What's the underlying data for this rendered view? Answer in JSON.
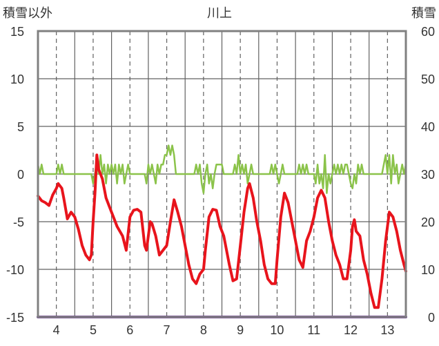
{
  "chart_data": {
    "type": "line",
    "title": "川上",
    "ylabel_left": "積雪以外",
    "ylabel_right": "積雪",
    "y_left_range": [
      -15,
      15
    ],
    "y_left_ticks": [
      15,
      10,
      5,
      0,
      -5,
      -10,
      -15
    ],
    "y_right_range": [
      0,
      60
    ],
    "y_right_ticks": [
      60,
      50,
      40,
      30,
      20,
      10,
      0
    ],
    "x_range": [
      3.5,
      13.5
    ],
    "x_ticks": [
      4,
      5,
      6,
      7,
      8,
      9,
      10,
      11,
      12,
      13
    ],
    "grid": {
      "vertical_dashed_at_days": true,
      "vertical_solid_between_days": true,
      "horizontal": true
    },
    "colors": {
      "temperature": "#e8141c",
      "precipitation": "#8bc34a",
      "snow": "#7030a0",
      "frame": "#808080",
      "grid": "#606060"
    },
    "series": [
      {
        "axis": "left",
        "color": "#e8141c",
        "points": [
          [
            3.5,
            -2.3
          ],
          [
            3.6,
            -2.8
          ],
          [
            3.7,
            -3.0
          ],
          [
            3.8,
            -3.3
          ],
          [
            3.9,
            -2.2
          ],
          [
            4.0,
            -1.5
          ],
          [
            4.05,
            -1.0
          ],
          [
            4.15,
            -1.5
          ],
          [
            4.2,
            -2.5
          ],
          [
            4.3,
            -4.7
          ],
          [
            4.4,
            -4.0
          ],
          [
            4.5,
            -4.5
          ],
          [
            4.6,
            -5.8
          ],
          [
            4.7,
            -7.5
          ],
          [
            4.8,
            -8.5
          ],
          [
            4.9,
            -9.0
          ],
          [
            4.95,
            -8.5
          ],
          [
            5.0,
            -5.0
          ],
          [
            5.05,
            -2.0
          ],
          [
            5.1,
            2.0
          ],
          [
            5.15,
            0.5
          ],
          [
            5.25,
            -0.5
          ],
          [
            5.35,
            -2.5
          ],
          [
            5.45,
            -3.5
          ],
          [
            5.55,
            -4.5
          ],
          [
            5.65,
            -5.5
          ],
          [
            5.8,
            -6.5
          ],
          [
            5.9,
            -8.0
          ],
          [
            6.0,
            -4.5
          ],
          [
            6.1,
            -3.8
          ],
          [
            6.2,
            -3.7
          ],
          [
            6.3,
            -4.0
          ],
          [
            6.4,
            -7.5
          ],
          [
            6.45,
            -8.0
          ],
          [
            6.55,
            -5.0
          ],
          [
            6.6,
            -5.2
          ],
          [
            6.7,
            -6.5
          ],
          [
            6.8,
            -8.5
          ],
          [
            6.9,
            -8.0
          ],
          [
            7.0,
            -7.5
          ],
          [
            7.1,
            -5.0
          ],
          [
            7.2,
            -2.7
          ],
          [
            7.3,
            -4.0
          ],
          [
            7.4,
            -5.5
          ],
          [
            7.5,
            -7.5
          ],
          [
            7.6,
            -9.5
          ],
          [
            7.7,
            -11.0
          ],
          [
            7.8,
            -11.5
          ],
          [
            7.9,
            -10.5
          ],
          [
            8.0,
            -10.0
          ],
          [
            8.05,
            -8.0
          ],
          [
            8.15,
            -4.5
          ],
          [
            8.25,
            -3.7
          ],
          [
            8.35,
            -3.8
          ],
          [
            8.45,
            -5.5
          ],
          [
            8.55,
            -6.5
          ],
          [
            8.7,
            -9.5
          ],
          [
            8.8,
            -11.2
          ],
          [
            8.9,
            -11.0
          ],
          [
            9.0,
            -7.5
          ],
          [
            9.1,
            -4.0
          ],
          [
            9.2,
            -1.5
          ],
          [
            9.25,
            -1.0
          ],
          [
            9.35,
            -2.5
          ],
          [
            9.45,
            -5.0
          ],
          [
            9.55,
            -7.0
          ],
          [
            9.65,
            -9.5
          ],
          [
            9.75,
            -11.0
          ],
          [
            9.85,
            -11.5
          ],
          [
            9.95,
            -11.5
          ],
          [
            10.0,
            -9.0
          ],
          [
            10.1,
            -4.5
          ],
          [
            10.2,
            -2.0
          ],
          [
            10.3,
            -3.0
          ],
          [
            10.4,
            -5.0
          ],
          [
            10.5,
            -7.0
          ],
          [
            10.6,
            -9.0
          ],
          [
            10.7,
            -9.8
          ],
          [
            10.8,
            -7.0
          ],
          [
            10.9,
            -6.0
          ],
          [
            11.0,
            -4.5
          ],
          [
            11.1,
            -2.5
          ],
          [
            11.2,
            -1.7
          ],
          [
            11.3,
            -2.5
          ],
          [
            11.4,
            -5.0
          ],
          [
            11.5,
            -7.0
          ],
          [
            11.6,
            -8.5
          ],
          [
            11.7,
            -9.5
          ],
          [
            11.8,
            -11.0
          ],
          [
            11.9,
            -11.0
          ],
          [
            12.0,
            -8.0
          ],
          [
            12.05,
            -5.5
          ],
          [
            12.1,
            -4.8
          ],
          [
            12.15,
            -6.0
          ],
          [
            12.25,
            -6.5
          ],
          [
            12.35,
            -9.0
          ],
          [
            12.45,
            -10.5
          ],
          [
            12.55,
            -12.5
          ],
          [
            12.65,
            -14.0
          ],
          [
            12.75,
            -14.0
          ],
          [
            12.85,
            -11.0
          ],
          [
            12.95,
            -7.0
          ],
          [
            13.05,
            -4.0
          ],
          [
            13.15,
            -4.5
          ],
          [
            13.25,
            -6.0
          ],
          [
            13.35,
            -8.0
          ],
          [
            13.45,
            -9.5
          ],
          [
            13.5,
            -10.2
          ]
        ]
      },
      {
        "axis": "left",
        "color": "#8bc34a",
        "points": [
          [
            3.5,
            1.0
          ],
          [
            3.55,
            0.0
          ],
          [
            3.6,
            1.0
          ],
          [
            3.65,
            0.0
          ],
          [
            4.0,
            0.0
          ],
          [
            4.05,
            1.0
          ],
          [
            4.1,
            0.0
          ],
          [
            4.15,
            1.0
          ],
          [
            4.2,
            0.0
          ],
          [
            4.95,
            0.0
          ],
          [
            5.0,
            -1.0
          ],
          [
            5.05,
            0.0
          ],
          [
            5.1,
            1.5
          ],
          [
            5.15,
            0.0
          ],
          [
            5.2,
            2.0
          ],
          [
            5.25,
            0.0
          ],
          [
            5.3,
            1.0
          ],
          [
            5.35,
            -1.0
          ],
          [
            5.4,
            1.0
          ],
          [
            5.45,
            0.0
          ],
          [
            5.5,
            1.0
          ],
          [
            5.55,
            0.0
          ],
          [
            5.6,
            1.0
          ],
          [
            5.65,
            -1.0
          ],
          [
            5.7,
            1.0
          ],
          [
            5.75,
            0.0
          ],
          [
            5.8,
            1.0
          ],
          [
            5.85,
            -1.0
          ],
          [
            5.9,
            0.0
          ],
          [
            5.95,
            1.0
          ],
          [
            6.0,
            0.0
          ],
          [
            6.4,
            0.0
          ],
          [
            6.45,
            -1.0
          ],
          [
            6.5,
            1.0
          ],
          [
            6.55,
            0.0
          ],
          [
            6.6,
            1.0
          ],
          [
            6.65,
            0.0
          ],
          [
            6.7,
            -1.0
          ],
          [
            6.75,
            1.0
          ],
          [
            6.8,
            0.0
          ],
          [
            6.85,
            1.0
          ],
          [
            6.9,
            1.0
          ],
          [
            6.95,
            2.0
          ],
          [
            7.0,
            2.0
          ],
          [
            7.05,
            3.0
          ],
          [
            7.1,
            2.0
          ],
          [
            7.15,
            3.0
          ],
          [
            7.2,
            2.0
          ],
          [
            7.25,
            0.0
          ],
          [
            7.75,
            0.0
          ],
          [
            7.8,
            1.0
          ],
          [
            7.85,
            0.0
          ],
          [
            7.9,
            1.0
          ],
          [
            7.95,
            -1.0
          ],
          [
            8.0,
            -2.0
          ],
          [
            8.05,
            0.0
          ],
          [
            8.1,
            1.0
          ],
          [
            8.15,
            -1.0
          ],
          [
            8.2,
            0.0
          ],
          [
            8.25,
            -1.5
          ],
          [
            8.3,
            0.0
          ],
          [
            8.35,
            1.0
          ],
          [
            8.5,
            1.0
          ],
          [
            8.55,
            0.0
          ],
          [
            8.8,
            0.0
          ],
          [
            8.85,
            1.0
          ],
          [
            8.9,
            0.0
          ],
          [
            8.95,
            2.0
          ],
          [
            9.0,
            0.0
          ],
          [
            9.05,
            1.0
          ],
          [
            9.1,
            0.0
          ],
          [
            9.15,
            1.0
          ],
          [
            9.2,
            -1.0
          ],
          [
            9.25,
            0.0
          ],
          [
            9.3,
            1.0
          ],
          [
            9.35,
            0.0
          ],
          [
            9.8,
            0.0
          ],
          [
            9.85,
            1.0
          ],
          [
            9.9,
            0.0
          ],
          [
            9.95,
            1.0
          ],
          [
            10.0,
            0.0
          ],
          [
            10.05,
            -1.0
          ],
          [
            10.1,
            0.0
          ],
          [
            10.15,
            1.0
          ],
          [
            10.2,
            0.0
          ],
          [
            10.55,
            0.0
          ],
          [
            10.6,
            1.0
          ],
          [
            10.65,
            0.0
          ],
          [
            10.7,
            1.0
          ],
          [
            10.75,
            0.0
          ],
          [
            10.8,
            1.0
          ],
          [
            10.85,
            0.0
          ],
          [
            11.0,
            0.0
          ],
          [
            11.05,
            -1.0
          ],
          [
            11.1,
            1.0
          ],
          [
            11.15,
            -1.0
          ],
          [
            11.2,
            0.0
          ],
          [
            11.25,
            -1.5
          ],
          [
            11.3,
            2.0
          ],
          [
            11.35,
            -2.0
          ],
          [
            11.4,
            0.0
          ],
          [
            11.45,
            -1.0
          ],
          [
            11.5,
            0.0
          ],
          [
            11.55,
            1.0
          ],
          [
            11.6,
            0.0
          ],
          [
            11.65,
            1.0
          ],
          [
            11.7,
            0.0
          ],
          [
            11.75,
            1.0
          ],
          [
            11.8,
            0.0
          ],
          [
            11.85,
            1.0
          ],
          [
            11.9,
            1.0
          ],
          [
            11.95,
            0.0
          ],
          [
            12.0,
            -1.0
          ],
          [
            12.05,
            -1.5
          ],
          [
            12.1,
            0.0
          ],
          [
            12.15,
            -1.0
          ],
          [
            12.2,
            1.0
          ],
          [
            12.25,
            0.0
          ],
          [
            12.3,
            1.0
          ],
          [
            12.35,
            0.0
          ],
          [
            12.85,
            0.0
          ],
          [
            12.9,
            1.0
          ],
          [
            12.95,
            2.0
          ],
          [
            13.0,
            0.0
          ],
          [
            13.05,
            2.0
          ],
          [
            13.1,
            -1.0
          ],
          [
            13.15,
            2.0
          ],
          [
            13.2,
            0.0
          ],
          [
            13.25,
            1.0
          ],
          [
            13.3,
            -1.0
          ],
          [
            13.35,
            0.0
          ],
          [
            13.4,
            1.0
          ],
          [
            13.45,
            0.0
          ],
          [
            13.5,
            1.0
          ]
        ]
      },
      {
        "axis": "right",
        "color": "#7030a0",
        "points": [
          [
            3.5,
            0
          ],
          [
            13.5,
            0
          ]
        ]
      }
    ]
  }
}
